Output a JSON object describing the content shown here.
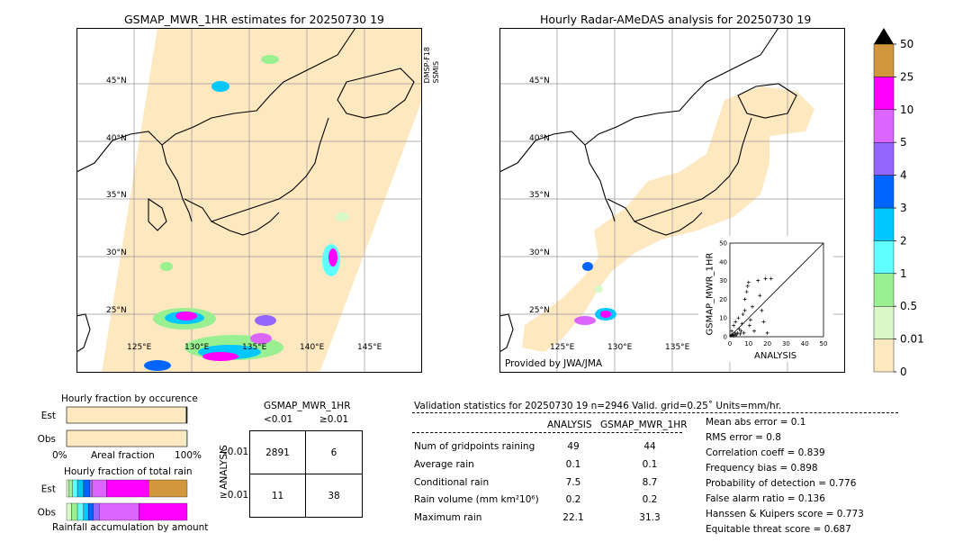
{
  "left_map": {
    "title": "GSMAP_MWR_1HR estimates for 20250730 19",
    "sensor_label": "DMSP-F18\nSSMIS",
    "lat_labels": [
      "45°N",
      "40°N",
      "35°N",
      "30°N",
      "25°N"
    ],
    "lon_labels": [
      "125°E",
      "130°E",
      "135°E",
      "140°E",
      "145°E"
    ]
  },
  "right_map": {
    "title": "Hourly Radar-AMeDAS analysis for 20250730 19",
    "lat_labels": [
      "45°N",
      "40°N",
      "35°N",
      "30°N",
      "25°N"
    ],
    "lon_labels": [
      "125°E",
      "130°E",
      "135°E"
    ],
    "credit": "Provided by JWA/JMA"
  },
  "colorbar": {
    "labels": [
      "0",
      "0.01",
      "0.5",
      "1",
      "2",
      "3",
      "4",
      "5",
      "10",
      "25",
      "50"
    ],
    "colors": [
      "#fde8c0",
      "#d8f8c8",
      "#98f090",
      "#60ffff",
      "#00c8ff",
      "#0064ff",
      "#9664ff",
      "#dc64ff",
      "#ff00ff",
      "#d2963c"
    ]
  },
  "chart_data": [
    {
      "type": "scatter",
      "xlabel": "ANALYSIS",
      "ylabel": "GSMAP_MWR_1HR",
      "xlim": [
        0,
        50
      ],
      "ylim": [
        0,
        50
      ],
      "ticks": [
        "0",
        "10",
        "20",
        "30",
        "40",
        "50"
      ],
      "points": [
        [
          0.5,
          0.5
        ],
        [
          1,
          3
        ],
        [
          1.5,
          1
        ],
        [
          2,
          6
        ],
        [
          2.5,
          2
        ],
        [
          3,
          8
        ],
        [
          3,
          1
        ],
        [
          4,
          2
        ],
        [
          4.5,
          10
        ],
        [
          5,
          4
        ],
        [
          5.5,
          1.5
        ],
        [
          6,
          3
        ],
        [
          6.5,
          7
        ],
        [
          7,
          12
        ],
        [
          7.5,
          2
        ],
        [
          8,
          14
        ],
        [
          8,
          20
        ],
        [
          9,
          24
        ],
        [
          9.5,
          27
        ],
        [
          10,
          29
        ],
        [
          10.5,
          6
        ],
        [
          11,
          9
        ],
        [
          12,
          16
        ],
        [
          13,
          3
        ],
        [
          15,
          30
        ],
        [
          16,
          22
        ],
        [
          17,
          14
        ],
        [
          18,
          8
        ],
        [
          19,
          31
        ],
        [
          20,
          2
        ],
        [
          22,
          31
        ],
        [
          3.5,
          1
        ],
        [
          1,
          1
        ],
        [
          2,
          0.5
        ]
      ]
    },
    {
      "type": "bar",
      "title": "Hourly fraction by occurence",
      "xlabel": "Areal fraction",
      "categories": [
        "Est",
        "Obs"
      ],
      "tick_labels": [
        "0%",
        "100%"
      ],
      "series": [
        {
          "values": [
            0.985,
            0.984
          ],
          "color": "#fde8c0"
        },
        {
          "values": [
            0.004,
            0.013
          ],
          "color": "#d8f8c8"
        },
        {
          "values": [
            0.011,
            0.003
          ],
          "color": "#222222"
        }
      ]
    },
    {
      "type": "bar",
      "title": "Hourly fraction of total rain",
      "xlabel": "Rainfall accumulation by amount",
      "categories": [
        "Est",
        "Obs"
      ],
      "stack_colors": [
        "#d8f8c8",
        "#98f090",
        "#60ffff",
        "#00c8ff",
        "#0064ff",
        "#9664ff",
        "#dc64ff",
        "#ff00ff",
        "#d2963c"
      ],
      "series_values": {
        "Est": [
          0.02,
          0.03,
          0.04,
          0.05,
          0.05,
          0.02,
          0.12,
          0.35,
          0.32
        ],
        "Obs": [
          0.04,
          0.05,
          0.05,
          0.04,
          0.04,
          0.05,
          0.33,
          0.4,
          0.0
        ]
      }
    }
  ],
  "contingency": {
    "title": "GSMAP_MWR_1HR",
    "col_labels": [
      "<0.01",
      "≥0.01"
    ],
    "row_title": "ANALYSIS",
    "row_labels": [
      "<0.01",
      "≥0.01"
    ],
    "cells": [
      [
        "2891",
        "6"
      ],
      [
        "11",
        "38"
      ]
    ]
  },
  "validation": {
    "header": "Validation statistics for 20250730 19  n=2946 Valid. grid=0.25˚ Units=mm/hr.",
    "col1": "ANALYSIS",
    "col2": "GSMAP_MWR_1HR",
    "rows": [
      {
        "label": "Num of gridpoints raining",
        "a": "49",
        "b": "44"
      },
      {
        "label": "Average rain",
        "a": "0.1",
        "b": "0.1"
      },
      {
        "label": "Conditional rain",
        "a": "7.5",
        "b": "8.7"
      },
      {
        "label": "Rain volume (mm km²10⁶)",
        "a": "0.2",
        "b": "0.2"
      },
      {
        "label": "Maximum rain",
        "a": "22.1",
        "b": "31.3"
      }
    ],
    "scores": [
      "Mean abs error =    0.1",
      "RMS error =    0.8",
      "Correlation coeff =  0.839",
      "Frequency bias =  0.898",
      "Probability of detection =  0.776",
      "False alarm ratio =  0.136",
      "Hanssen & Kuipers score =  0.773",
      "Equitable threat score =  0.687"
    ]
  }
}
